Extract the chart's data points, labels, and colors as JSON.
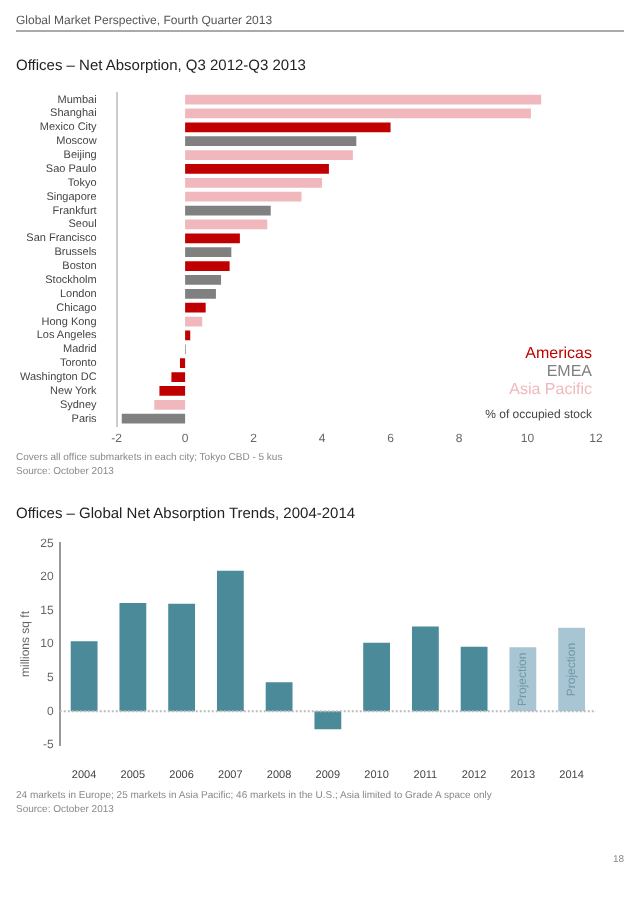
{
  "chart_data": [
    {
      "type": "bar",
      "title": "Offices – Net Absorption, Q3 2012-Q3 2013",
      "orientation": "horizontal",
      "xlabel": "% of occupied stock",
      "categories": [
        "Mumbai",
        "Shanghai",
        "Mexico City",
        "Moscow",
        "Beijing",
        "Sao Paulo",
        "Tokyo",
        "Singapore",
        "Frankfurt",
        "Seoul",
        "San Francisco",
        "Brussels",
        "Boston",
        "Stockholm",
        "London",
        "Chicago",
        "Hong Kong",
        "Los Angeles",
        "Madrid",
        "Toronto",
        "Washington DC",
        "New York",
        "Sydney",
        "Paris"
      ],
      "series": [
        {
          "name": "Americas",
          "color": "#c00000",
          "values": [
            null,
            null,
            6.0,
            null,
            null,
            4.2,
            null,
            null,
            null,
            null,
            1.6,
            null,
            1.3,
            null,
            null,
            0.6,
            null,
            0.15,
            null,
            -0.15,
            -0.4,
            -0.75,
            null,
            null
          ]
        },
        {
          "name": "EMEA",
          "color": "#808080",
          "values": [
            null,
            null,
            null,
            5.0,
            null,
            null,
            null,
            null,
            2.5,
            null,
            null,
            1.35,
            null,
            1.05,
            0.9,
            null,
            null,
            null,
            0.02,
            null,
            null,
            null,
            null,
            -1.85
          ]
        },
        {
          "name": "Asia Pacific",
          "color": "#f0b8bc",
          "values": [
            10.4,
            10.1,
            null,
            null,
            4.9,
            null,
            4.0,
            3.4,
            null,
            2.4,
            null,
            null,
            null,
            null,
            null,
            null,
            0.5,
            null,
            null,
            null,
            null,
            null,
            -0.9,
            null
          ]
        }
      ],
      "xlim": [
        -2,
        12
      ],
      "xticks": [
        -2,
        0,
        2,
        4,
        6,
        8,
        10,
        12
      ],
      "legend": "bottom right",
      "annotations": [
        "Global Market Perspective, Fourth Quarter 2013",
        "Covers all office submarkets in each city; Tokyo CBD - 5 kus",
        "Source: October 2013"
      ]
    },
    {
      "type": "bar",
      "title": "Offices – Global Net Absorption Trends, 2004-2014",
      "ylabel": "millions sq ft",
      "categories": [
        "2004",
        "2005",
        "2006",
        "2007",
        "2008",
        "2009",
        "2010",
        "2011",
        "2012",
        "2013",
        "2014"
      ],
      "values": [
        10.4,
        16.1,
        16.0,
        20.9,
        4.3,
        -2.7,
        10.2,
        12.6,
        9.6,
        9.5,
        12.4
      ],
      "colors": [
        "#4a8a99",
        "#4a8a99",
        "#4a8a99",
        "#4a8a99",
        "#4a8a99",
        "#4a8a99",
        "#4a8a99",
        "#4a8a99",
        "#4a8a99",
        "#a8c5d3",
        "#a8c5d3"
      ],
      "ylim": [
        -5,
        25
      ],
      "yticks": [
        -5,
        0,
        5,
        10,
        15,
        20,
        25
      ],
      "annotations": [
        "Projection",
        "Projection",
        "24 markets in Europe; 25 markets in Asia Pacific; 46 markets in the U.S.; Asia limited to Grade A space only",
        "Source: October 2013",
        "18"
      ]
    }
  ]
}
